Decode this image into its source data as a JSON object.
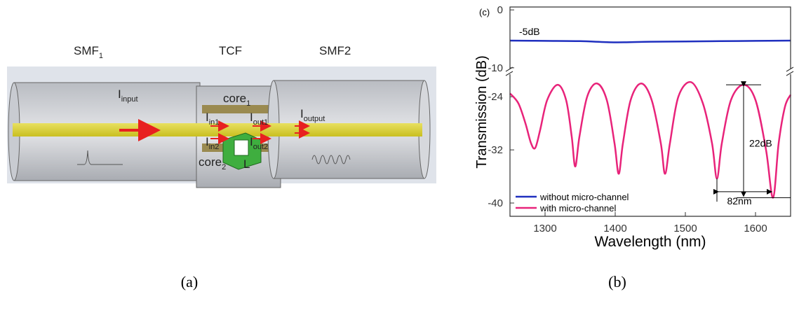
{
  "diagram": {
    "labels": [
      {
        "text": "SMF",
        "sub": "1"
      },
      {
        "text": "TCF"
      },
      {
        "text": "SMF2"
      },
      {
        "text": "I",
        "sub": "input"
      },
      {
        "text": "core",
        "sub": "1"
      },
      {
        "text": "I",
        "sub": "in1"
      },
      {
        "text": "I",
        "sub": "out1"
      },
      {
        "text": "I",
        "sub": "in2"
      },
      {
        "text": "I",
        "sub": "out2"
      },
      {
        "text": "core",
        "sub": "2"
      },
      {
        "text": "L"
      },
      {
        "text": "I",
        "sub": "output"
      }
    ]
  },
  "captions": [
    "(a)",
    "(b)"
  ],
  "chart_data": [
    {
      "type": "line",
      "label": "(c)",
      "ylabel": "Transmission (dB)",
      "xlim": [
        1250,
        1650
      ],
      "ylim": [
        -10.5,
        0.5
      ],
      "yticks": [
        0,
        -10
      ],
      "annotations": [
        "-5dB"
      ],
      "series": [
        {
          "name": "without micro-channel",
          "color": "#1f2fbf",
          "x": [
            1250,
            1300,
            1350,
            1400,
            1450,
            1500,
            1550,
            1600,
            1650
          ],
          "values": [
            -5.3,
            -5.35,
            -5.4,
            -5.6,
            -5.5,
            -5.45,
            -5.4,
            -5.35,
            -5.3
          ]
        }
      ]
    },
    {
      "type": "line",
      "xlabel": "Wavelength (nm)",
      "xlim": [
        1250,
        1650
      ],
      "xticks": [
        1300,
        1400,
        1500,
        1600
      ],
      "ylim": [
        -42,
        -20.5
      ],
      "yticks": [
        -24,
        -32,
        -40
      ],
      "legend": "lower left",
      "annotations": [
        "22dB",
        "82nm"
      ],
      "series": [
        {
          "name": "with micro-channel",
          "color": "#e8237a",
          "x": [
            1250,
            1262,
            1272,
            1280,
            1286,
            1293,
            1303,
            1318,
            1330,
            1338,
            1343,
            1349,
            1360,
            1374,
            1388,
            1399,
            1405,
            1411,
            1422,
            1437,
            1452,
            1465,
            1471,
            1478,
            1490,
            1508,
            1525,
            1538,
            1545,
            1552,
            1565,
            1583,
            1600,
            1615,
            1625,
            1633,
            1642,
            1650
          ],
          "values": [
            -23.5,
            -25,
            -28,
            -31,
            -31.7,
            -29,
            -24.5,
            -22.2,
            -24.5,
            -30,
            -34.5,
            -30,
            -24,
            -22,
            -24.5,
            -31,
            -35.6,
            -31,
            -24.5,
            -22,
            -24.5,
            -31,
            -35.6,
            -31,
            -24,
            -21.8,
            -25,
            -31,
            -36.3,
            -31,
            -24.5,
            -22.2,
            -24.5,
            -32,
            -39.2,
            -31,
            -25.5,
            -23.7
          ]
        }
      ]
    }
  ]
}
